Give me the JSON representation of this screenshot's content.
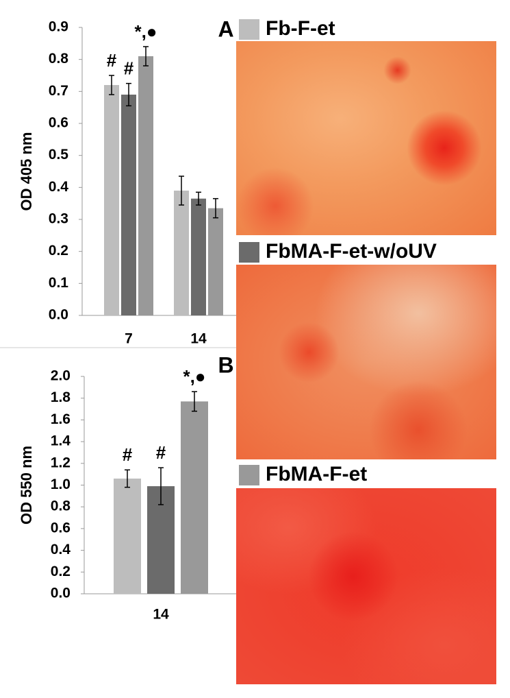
{
  "chart_data": [
    {
      "type": "bar",
      "panel": "A",
      "y_label": "OD 405 nm",
      "categories": [
        "7",
        "14"
      ],
      "ylim": [
        0,
        0.9
      ],
      "yticks": [
        {
          "value": 0,
          "label": "0.0"
        },
        {
          "value": 0.1,
          "label": "0.1"
        },
        {
          "value": 0.2,
          "label": "0.2"
        },
        {
          "value": 0.3,
          "label": "0.3"
        },
        {
          "value": 0.4,
          "label": "0.4"
        },
        {
          "value": 0.5,
          "label": "0.5"
        },
        {
          "value": 0.6,
          "label": "0.6"
        },
        {
          "value": 0.7,
          "label": "0.7"
        },
        {
          "value": 0.8,
          "label": "0.8"
        },
        {
          "value": 0.9,
          "label": "0.9"
        }
      ],
      "series": [
        {
          "name": "Fb-F-et",
          "color": "#bdbdbd",
          "values": [
            0.72,
            0.39
          ],
          "errors": [
            0.03,
            0.045
          ],
          "annotations": [
            "#",
            null
          ]
        },
        {
          "name": "FbMA-F-et-w/oUV",
          "color": "#6b6b6b",
          "values": [
            0.69,
            0.365
          ],
          "errors": [
            0.035,
            0.02
          ],
          "annotations": [
            "#",
            null
          ]
        },
        {
          "name": "FbMA-F-et",
          "color": "#999999",
          "values": [
            0.81,
            0.335
          ],
          "errors": [
            0.03,
            0.03
          ],
          "annotations": [
            "*,●",
            null
          ]
        }
      ]
    },
    {
      "type": "bar",
      "panel": "B",
      "y_label": "OD 550 nm",
      "categories": [
        "14"
      ],
      "ylim": [
        0,
        2.0
      ],
      "yticks": [
        {
          "value": 0,
          "label": "0.0"
        },
        {
          "value": 0.2,
          "label": "0.2"
        },
        {
          "value": 0.4,
          "label": "0.4"
        },
        {
          "value": 0.6,
          "label": "0.6"
        },
        {
          "value": 0.8,
          "label": "0.8"
        },
        {
          "value": 1.0,
          "label": "1.0"
        },
        {
          "value": 1.2,
          "label": "1.2"
        },
        {
          "value": 1.4,
          "label": "1.4"
        },
        {
          "value": 1.6,
          "label": "1.6"
        },
        {
          "value": 1.8,
          "label": "1.8"
        },
        {
          "value": 2.0,
          "label": "2.0"
        }
      ],
      "series": [
        {
          "color": "#bdbdbd",
          "values": [
            1.06
          ],
          "errors": [
            0.08
          ],
          "annotations": [
            "#"
          ]
        },
        {
          "color": "#6b6b6b",
          "values": [
            0.99
          ],
          "errors": [
            0.17
          ],
          "annotations": [
            "#"
          ]
        },
        {
          "color": "#999999",
          "values": [
            1.77
          ],
          "errors": [
            0.09
          ],
          "annotations": [
            "*,●"
          ]
        }
      ]
    }
  ]
}
